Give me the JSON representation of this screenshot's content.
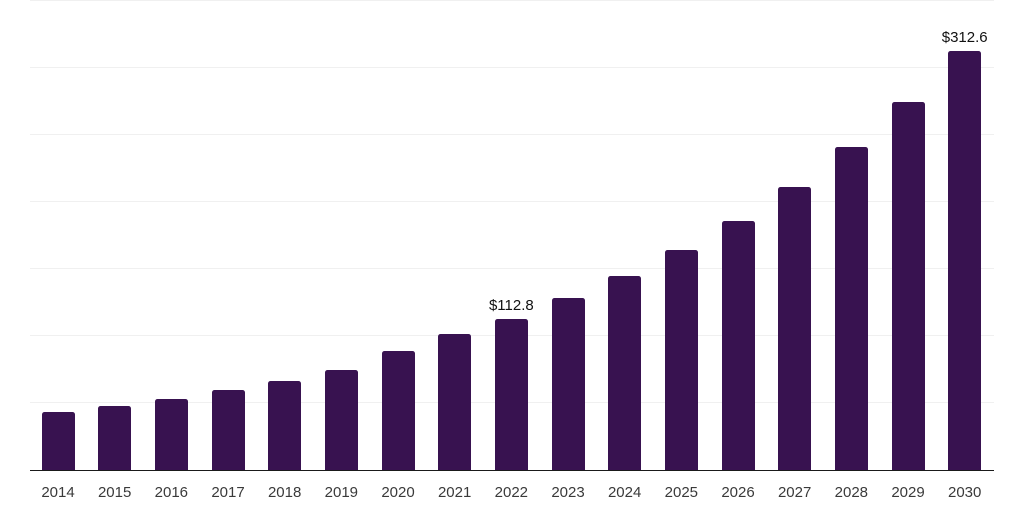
{
  "chart_data": {
    "type": "bar",
    "title": "",
    "xlabel": "",
    "ylabel": "",
    "categories": [
      "2014",
      "2015",
      "2016",
      "2017",
      "2018",
      "2019",
      "2020",
      "2021",
      "2022",
      "2023",
      "2024",
      "2025",
      "2026",
      "2027",
      "2028",
      "2029",
      "2030"
    ],
    "values": [
      43.1,
      47.9,
      53.3,
      60.0,
      66.7,
      74.7,
      89.1,
      101.2,
      112.8,
      128.0,
      144.5,
      163.9,
      185.5,
      211.1,
      240.7,
      274.5,
      312.6
    ],
    "data_labels": [
      {
        "category": "2022",
        "text": "$112.8"
      },
      {
        "category": "2030",
        "text": "$312.6"
      }
    ],
    "ylim": [
      0,
      350
    ],
    "gridline_step": 50,
    "grid": true,
    "y_axis_tick_labels_visible": false,
    "legend_position": "none"
  },
  "colors": {
    "bar": "#381250",
    "gridline": "#f0f0f0",
    "axis_line": "#1a1a1a",
    "tick_label": "#3a3a3a",
    "data_label": "#111111",
    "background": "#ffffff"
  }
}
